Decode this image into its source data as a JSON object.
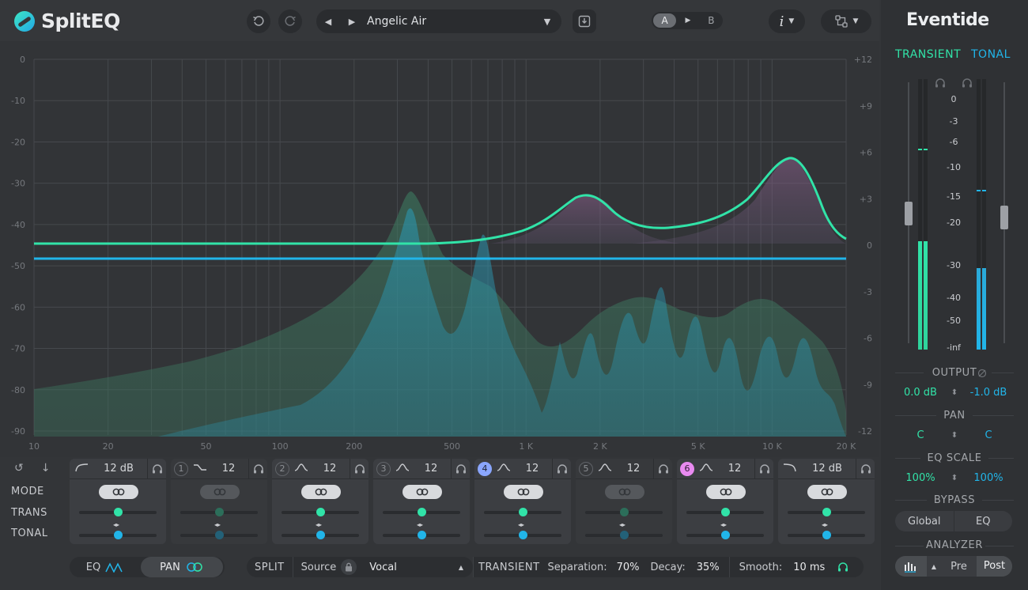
{
  "app": {
    "name": "SplitEQ",
    "brand": "Eventide"
  },
  "toolbar": {
    "preset_name": "Angelic Air",
    "ab_a": "A",
    "ab_b": "B",
    "info_label": "i"
  },
  "eq": {
    "db_left_labels": [
      "0",
      "-10",
      "-20",
      "-30",
      "-40",
      "-50",
      "-60",
      "-70",
      "-80",
      "-90"
    ],
    "db_right_labels": [
      "+12",
      "+9",
      "+6",
      "+3",
      "0",
      "-3",
      "-6",
      "-9",
      "-12"
    ],
    "freq_labels": [
      "10",
      "20",
      "50",
      "100",
      "200",
      "500",
      "1 K",
      "2 K",
      "5 K",
      "10 K",
      "20 K"
    ],
    "colors": {
      "transient": "#31e3a8",
      "tonal": "#21b5e9",
      "band4": "#8aa6ff",
      "band6": "#e98af0"
    }
  },
  "strip": {
    "rows": [
      "MODE",
      "TRANS",
      "TONAL"
    ],
    "bands": [
      {
        "num": "",
        "shape": "low-cut-icon",
        "value": "12 dB"
      },
      {
        "num": "1",
        "shape": "low-shelf-icon",
        "value": "12"
      },
      {
        "num": "2",
        "shape": "bell-icon",
        "value": "12"
      },
      {
        "num": "3",
        "shape": "bell-icon",
        "value": "12"
      },
      {
        "num": "4",
        "shape": "bell-icon",
        "value": "12"
      },
      {
        "num": "5",
        "shape": "bell-icon",
        "value": "12"
      },
      {
        "num": "6",
        "shape": "bell-icon",
        "value": "12"
      },
      {
        "num": "",
        "shape": "high-cut-icon",
        "value": "12 dB"
      }
    ]
  },
  "bottom": {
    "eq_label": "EQ",
    "pan_label": "PAN",
    "split_label": "SPLIT",
    "source_label": "Source",
    "source_value": "Vocal",
    "transient_label": "TRANSIENT",
    "separation_label": "Separation:",
    "separation_value": "70%",
    "decay_label": "Decay:",
    "decay_value": "35%",
    "smooth_label": "Smooth:",
    "smooth_value": "10 ms"
  },
  "right": {
    "transient_label": "TRANSIENT",
    "tonal_label": "TONAL",
    "meter_scale": [
      "0",
      "-3",
      "-6",
      "-10",
      "-15",
      "-20",
      "-30",
      "-40",
      "-50",
      "-inf"
    ],
    "output_title": "OUTPUT",
    "output_transient": "0.0 dB",
    "output_tonal": "-1.0 dB",
    "pan_title": "PAN",
    "pan_transient": "C",
    "pan_tonal": "C",
    "eqscale_title": "EQ SCALE",
    "eqscale_transient": "100%",
    "eqscale_tonal": "100%",
    "bypass_title": "BYPASS",
    "bypass_global": "Global",
    "bypass_eq": "EQ",
    "analyzer_title": "ANALYZER",
    "analyzer_pre": "Pre",
    "analyzer_post": "Post",
    "meter_transient_level": 0.35,
    "meter_tonal_level": 0.2
  }
}
